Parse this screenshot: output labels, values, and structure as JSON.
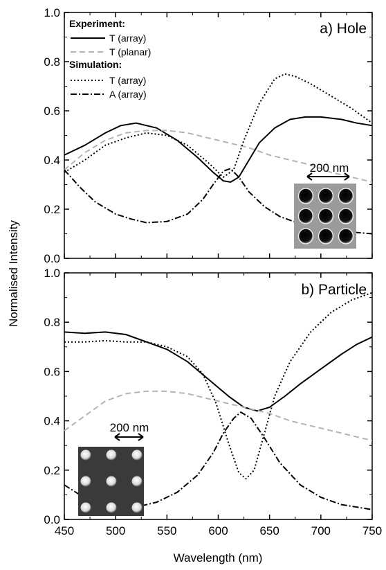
{
  "figure": {
    "xlabel": "Wavelength (nm)",
    "ylabel": "Normalised Intensity"
  },
  "legend": {
    "experiment_heading": "Experiment:",
    "simulation_heading": "Simulation:",
    "items": [
      {
        "label": "T (array)",
        "style": "solid"
      },
      {
        "label": "T (planar)",
        "style": "dashed-gray"
      },
      {
        "label": "T (array)",
        "style": "dotted"
      },
      {
        "label": "A (array)",
        "style": "dashdot"
      }
    ]
  },
  "colors": {
    "solid": "#000000",
    "dashed_gray": "#b4b4b4",
    "dotted": "#000000",
    "dashdot": "#000000"
  },
  "chart_data": [
    {
      "type": "line",
      "panel_label": "a) Hole",
      "inset_scale_label": "200 nm",
      "xlim": [
        450,
        750
      ],
      "ylim": [
        0,
        1.0
      ],
      "x_ticks": [
        450,
        500,
        550,
        600,
        650,
        700,
        750
      ],
      "y_ticks": [
        "0.0",
        "0.2",
        "0.4",
        "0.6",
        "0.8",
        "1.0"
      ],
      "series": [
        {
          "style": "solid",
          "x": [
            450,
            470,
            490,
            505,
            520,
            540,
            560,
            580,
            595,
            605,
            612,
            620,
            630,
            640,
            655,
            670,
            685,
            700,
            720,
            735,
            750
          ],
          "y": [
            0.42,
            0.46,
            0.51,
            0.54,
            0.55,
            0.53,
            0.48,
            0.41,
            0.35,
            0.315,
            0.31,
            0.33,
            0.4,
            0.47,
            0.53,
            0.565,
            0.575,
            0.575,
            0.565,
            0.55,
            0.54
          ]
        },
        {
          "style": "dashed-gray",
          "x": [
            450,
            470,
            490,
            510,
            530,
            550,
            570,
            590,
            610,
            630,
            650,
            670,
            690,
            710,
            730,
            750
          ],
          "y": [
            0.36,
            0.43,
            0.48,
            0.51,
            0.52,
            0.52,
            0.51,
            0.49,
            0.47,
            0.45,
            0.42,
            0.4,
            0.38,
            0.35,
            0.33,
            0.31
          ]
        },
        {
          "style": "dotted",
          "x": [
            450,
            470,
            490,
            510,
            530,
            550,
            570,
            590,
            605,
            615,
            625,
            640,
            655,
            665,
            675,
            690,
            710,
            730,
            750
          ],
          "y": [
            0.35,
            0.4,
            0.46,
            0.49,
            0.51,
            0.5,
            0.46,
            0.39,
            0.33,
            0.36,
            0.48,
            0.63,
            0.73,
            0.75,
            0.74,
            0.71,
            0.66,
            0.61,
            0.55
          ]
        },
        {
          "style": "dashdot",
          "x": [
            450,
            465,
            480,
            500,
            515,
            530,
            550,
            570,
            585,
            595,
            605,
            612,
            620,
            630,
            645,
            660,
            680,
            700,
            720,
            735,
            750
          ],
          "y": [
            0.36,
            0.29,
            0.23,
            0.18,
            0.16,
            0.145,
            0.15,
            0.18,
            0.24,
            0.3,
            0.355,
            0.365,
            0.33,
            0.27,
            0.21,
            0.17,
            0.14,
            0.12,
            0.11,
            0.105,
            0.1
          ]
        }
      ]
    },
    {
      "type": "line",
      "panel_label": "b) Particle",
      "inset_scale_label": "200 nm",
      "xlim": [
        450,
        750
      ],
      "ylim": [
        0,
        1.0
      ],
      "x_ticks": [
        450,
        500,
        550,
        600,
        650,
        700,
        750
      ],
      "x_tick_labels": [
        "450",
        "500",
        "550",
        "600",
        "650",
        "700",
        "750"
      ],
      "y_ticks": [
        "0.0",
        "0.2",
        "0.4",
        "0.6",
        "0.8",
        "1.0"
      ],
      "series": [
        {
          "style": "solid",
          "x": [
            450,
            470,
            490,
            510,
            530,
            550,
            570,
            590,
            610,
            625,
            638,
            650,
            665,
            680,
            700,
            720,
            735,
            750
          ],
          "y": [
            0.76,
            0.755,
            0.76,
            0.75,
            0.72,
            0.69,
            0.64,
            0.57,
            0.5,
            0.455,
            0.44,
            0.455,
            0.5,
            0.55,
            0.61,
            0.67,
            0.71,
            0.74
          ]
        },
        {
          "style": "dashed-gray",
          "x": [
            450,
            470,
            490,
            510,
            530,
            550,
            570,
            590,
            610,
            630,
            650,
            670,
            690,
            710,
            730,
            750
          ],
          "y": [
            0.36,
            0.42,
            0.48,
            0.51,
            0.52,
            0.52,
            0.51,
            0.49,
            0.47,
            0.45,
            0.43,
            0.4,
            0.38,
            0.36,
            0.34,
            0.32
          ]
        },
        {
          "style": "dotted",
          "x": [
            450,
            470,
            490,
            510,
            530,
            550,
            570,
            585,
            598,
            610,
            620,
            627,
            635,
            645,
            655,
            670,
            690,
            710,
            730,
            750
          ],
          "y": [
            0.72,
            0.72,
            0.725,
            0.72,
            0.72,
            0.7,
            0.66,
            0.59,
            0.47,
            0.31,
            0.19,
            0.165,
            0.2,
            0.35,
            0.5,
            0.64,
            0.76,
            0.84,
            0.89,
            0.92
          ]
        },
        {
          "style": "dashdot",
          "x": [
            450,
            465,
            480,
            500,
            520,
            540,
            560,
            580,
            595,
            605,
            615,
            622,
            632,
            645,
            660,
            680,
            700,
            720,
            735,
            750
          ],
          "y": [
            0.14,
            0.1,
            0.07,
            0.05,
            0.05,
            0.07,
            0.11,
            0.18,
            0.27,
            0.35,
            0.41,
            0.435,
            0.41,
            0.33,
            0.23,
            0.14,
            0.09,
            0.06,
            0.05,
            0.04
          ]
        }
      ]
    }
  ]
}
